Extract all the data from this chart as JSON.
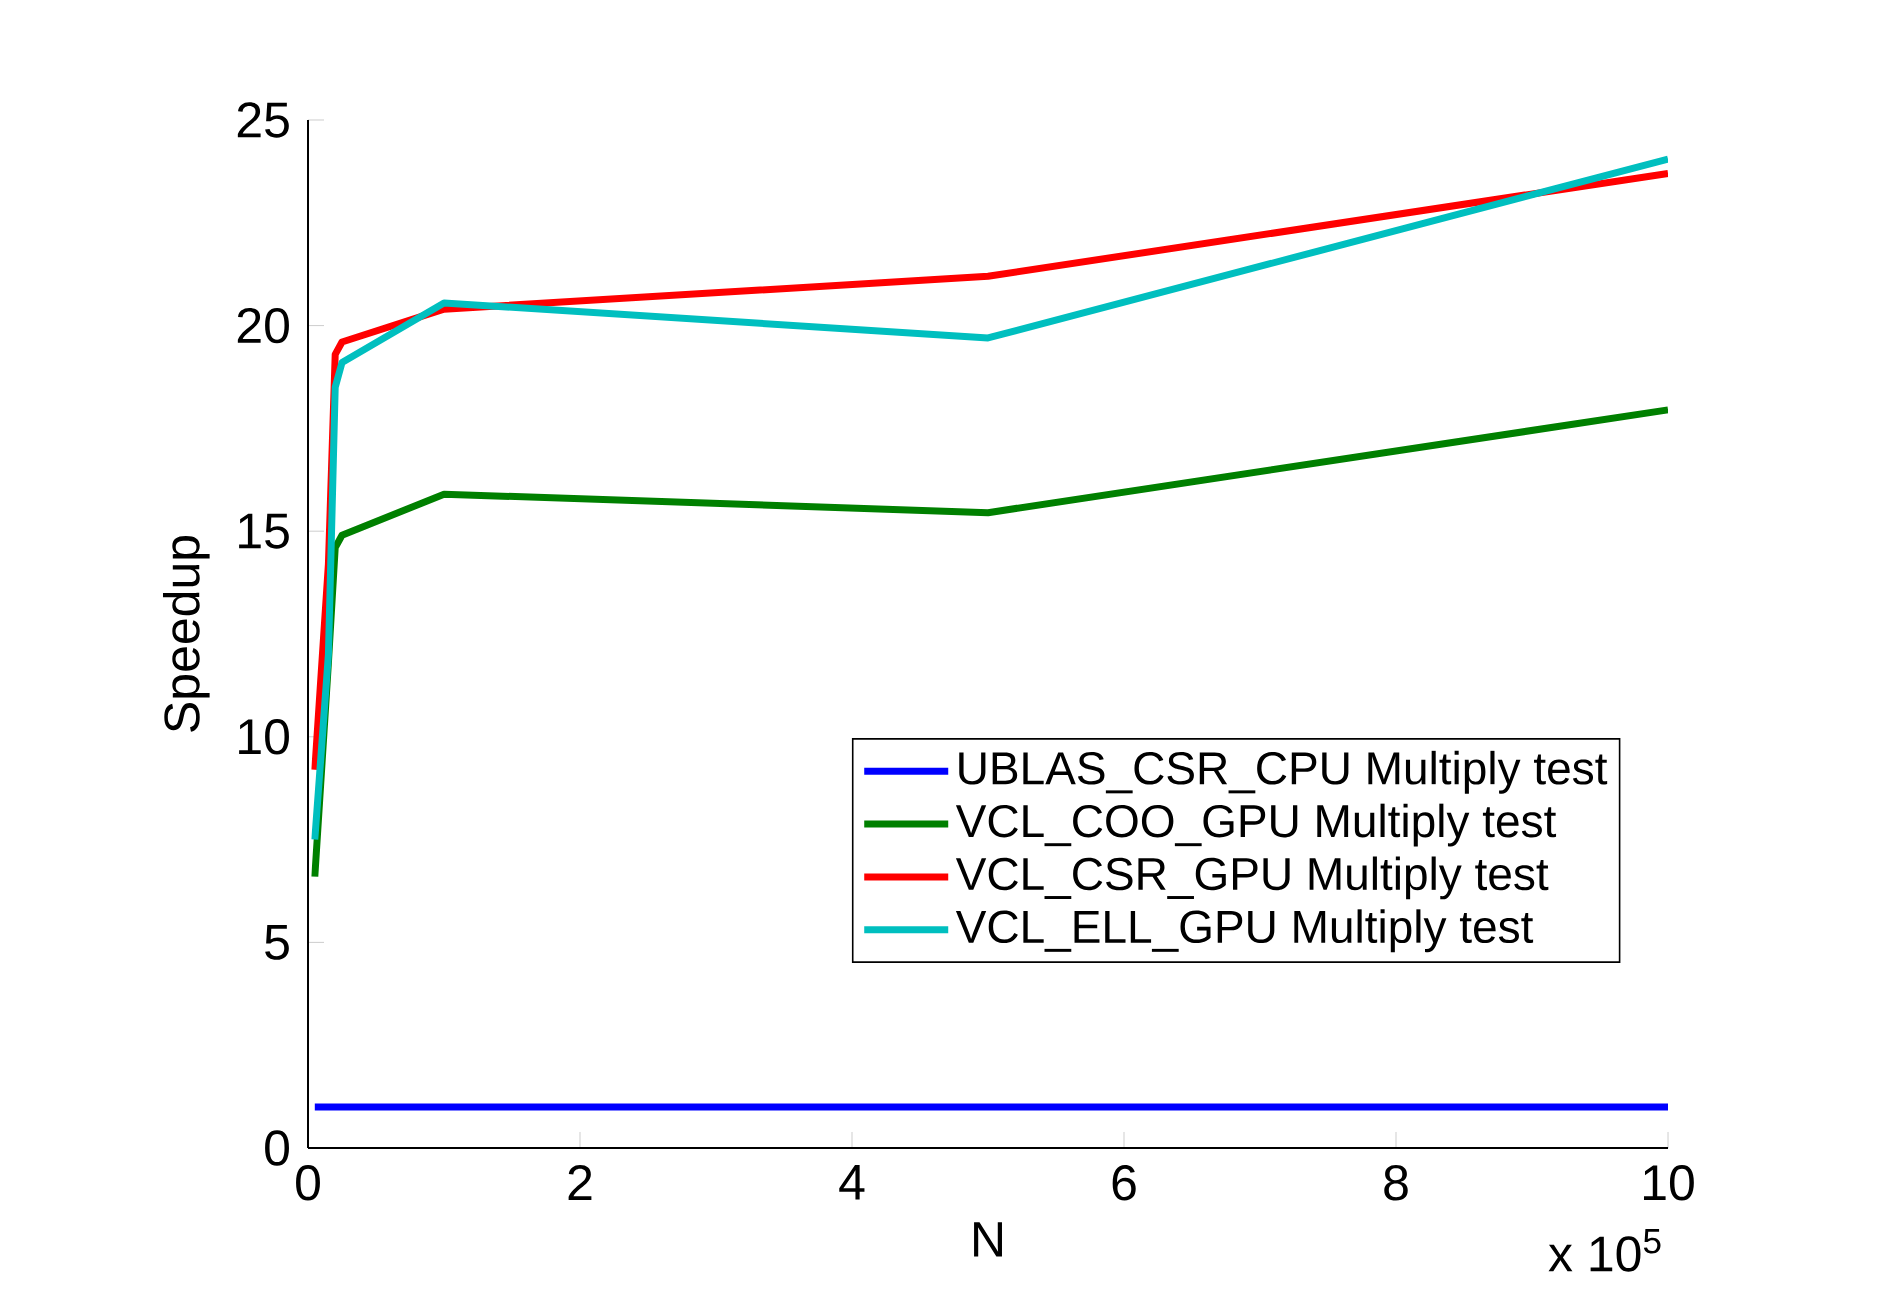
{
  "chart_data": {
    "type": "line",
    "xlabel": "N",
    "ylabel": "Speedup",
    "annotations": [
      "x 10$^{5}$"
    ],
    "x": [
      0.05,
      0.15,
      0.2,
      0.25,
      1,
      5,
      10
    ],
    "series": [
      {
        "name": "UBLAS_CSR_CPU Multiply test",
        "color": "#0000ff",
        "values": [
          1,
          1,
          1,
          1,
          1,
          1,
          1
        ]
      },
      {
        "name": "VCL_COO_GPU Multiply test",
        "color": "#008000",
        "values": [
          6.6,
          11.8,
          14.6,
          14.9,
          15.9,
          15.45,
          17.95
        ]
      },
      {
        "name": "VCL_CSR_GPU Multiply test",
        "color": "#ff0000",
        "values": [
          9.2,
          14.2,
          19.3,
          19.6,
          20.4,
          21.2,
          23.7
        ]
      },
      {
        "name": "VCL_ELL_GPU Multiply test",
        "color": "#00bfbf",
        "values": [
          7.5,
          12.0,
          18.5,
          19.1,
          20.55,
          19.7,
          24.05
        ]
      }
    ],
    "xlim": [
      0,
      10
    ],
    "ylim": [
      0,
      25
    ],
    "xticks": [
      0,
      2,
      4,
      6,
      8,
      10
    ],
    "yticks": [
      0,
      5,
      10,
      15,
      20,
      25
    ],
    "legend": "right",
    "grid": false,
    "marker": "none",
    "line_style": "solid"
  }
}
